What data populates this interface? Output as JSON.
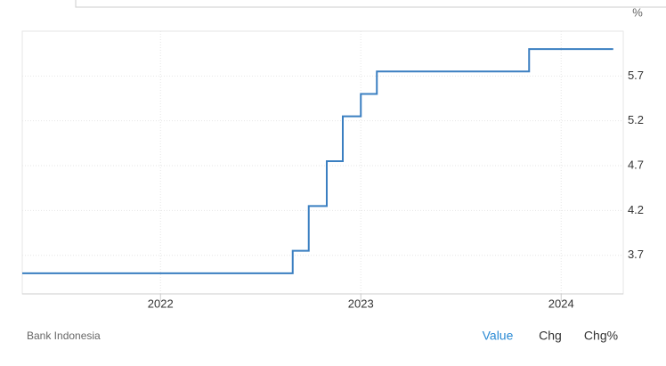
{
  "chart_data": {
    "type": "line",
    "step": true,
    "unit": "%",
    "source": "Bank Indonesia",
    "x": [
      2021.31,
      2022.66,
      2022.74,
      2022.83,
      2022.91,
      2023.0,
      2023.08,
      2023.84,
      2024.26
    ],
    "values": [
      3.5,
      3.75,
      4.25,
      4.75,
      5.25,
      5.5,
      5.75,
      6.0,
      6.0
    ],
    "color": "#3a7fc1",
    "xlim": [
      2021.31,
      2024.31
    ],
    "xticks": [
      2022,
      2023,
      2024
    ],
    "ylim": [
      3.27,
      6.2
    ],
    "yticks": [
      3.7,
      4.2,
      4.7,
      5.2,
      5.7
    ],
    "grid": true
  },
  "controls": [
    "Value",
    "Chg",
    "Chg%"
  ]
}
